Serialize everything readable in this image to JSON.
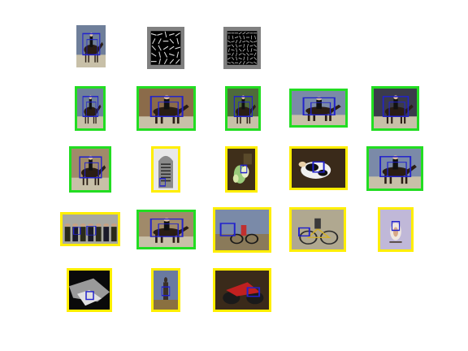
{
  "colors": {
    "background": "#ffffff",
    "correct_frame": "#22dd22",
    "other_frame": "#ffee00",
    "detection_box": "#2222cc",
    "hog_panel_border": "#808080"
  },
  "query": {
    "image": "query-photo-horse-rider",
    "templates": [
      "hog-template-1",
      "hog-template-2"
    ]
  },
  "results": [
    {
      "row": 1,
      "frame": "correct",
      "subject": "horse-rider"
    },
    {
      "row": 1,
      "frame": "correct",
      "subject": "horse-rider"
    },
    {
      "row": 1,
      "frame": "correct",
      "subject": "horse-rider"
    },
    {
      "row": 1,
      "frame": "correct",
      "subject": "horse-rider"
    },
    {
      "row": 1,
      "frame": "correct",
      "subject": "horse-rider"
    },
    {
      "row": 2,
      "frame": "correct",
      "subject": "horse-rider"
    },
    {
      "row": 2,
      "frame": "other",
      "subject": "gravestone"
    },
    {
      "row": 2,
      "frame": "other",
      "subject": "flowers"
    },
    {
      "row": 2,
      "frame": "other",
      "subject": "cow"
    },
    {
      "row": 2,
      "frame": "correct",
      "subject": "horse-rider"
    },
    {
      "row": 3,
      "frame": "other",
      "subject": "people-group"
    },
    {
      "row": 3,
      "frame": "correct",
      "subject": "horse-rider"
    },
    {
      "row": 3,
      "frame": "other",
      "subject": "cyclists"
    },
    {
      "row": 3,
      "frame": "other",
      "subject": "bicycle"
    },
    {
      "row": 3,
      "frame": "other",
      "subject": "bird"
    },
    {
      "row": 4,
      "frame": "other",
      "subject": "dark-scene"
    },
    {
      "row": 4,
      "frame": "other",
      "subject": "statue"
    },
    {
      "row": 4,
      "frame": "other",
      "subject": "motorbike"
    }
  ]
}
